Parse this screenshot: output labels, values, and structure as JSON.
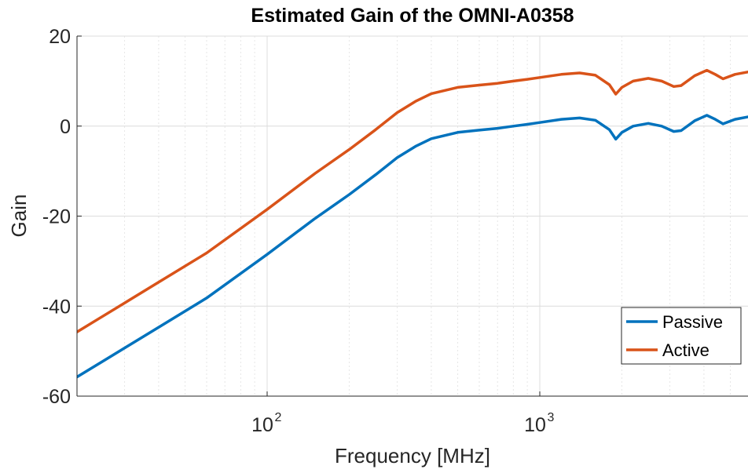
{
  "chart_data": {
    "type": "line",
    "title": "Estimated Gain of the OMNI-A0358",
    "xlabel": "Frequency [MHz]",
    "ylabel": "Gain",
    "xscale": "log",
    "xlim": [
      20,
      6000
    ],
    "ylim": [
      -60,
      20
    ],
    "grid": true,
    "minor_grid": true,
    "legend_location": "bottom-right",
    "y_ticks": [
      "-60",
      "-40",
      "-20",
      "0",
      "20"
    ],
    "x_ticks": [
      {
        "value": 100,
        "base": "10",
        "exp": "2"
      },
      {
        "value": 1000,
        "base": "10",
        "exp": "3"
      }
    ],
    "series": [
      {
        "name": "Passive",
        "color": "#0072BD",
        "points": [
          [
            20,
            -55.8
          ],
          [
            30,
            -49.3
          ],
          [
            40,
            -44.7
          ],
          [
            60,
            -38.2
          ],
          [
            100,
            -28.5
          ],
          [
            150,
            -20.5
          ],
          [
            200,
            -15.2
          ],
          [
            250,
            -10.8
          ],
          [
            300,
            -7.0
          ],
          [
            350,
            -4.5
          ],
          [
            400,
            -2.8
          ],
          [
            500,
            -1.4
          ],
          [
            600,
            -0.9
          ],
          [
            700,
            -0.5
          ],
          [
            800,
            0.0
          ],
          [
            900,
            0.4
          ],
          [
            1000,
            0.8
          ],
          [
            1200,
            1.5
          ],
          [
            1400,
            1.8
          ],
          [
            1600,
            1.3
          ],
          [
            1800,
            -0.8
          ],
          [
            1900,
            -2.9
          ],
          [
            2000,
            -1.4
          ],
          [
            2200,
            0.0
          ],
          [
            2500,
            0.6
          ],
          [
            2800,
            0.0
          ],
          [
            3100,
            -1.2
          ],
          [
            3300,
            -1.0
          ],
          [
            3700,
            1.2
          ],
          [
            4100,
            2.4
          ],
          [
            4400,
            1.5
          ],
          [
            4700,
            0.5
          ],
          [
            5200,
            1.5
          ],
          [
            6000,
            2.2
          ]
        ]
      },
      {
        "name": "Active",
        "color": "#D95319",
        "points": [
          [
            20,
            -45.8
          ],
          [
            30,
            -39.3
          ],
          [
            40,
            -34.7
          ],
          [
            60,
            -28.2
          ],
          [
            100,
            -18.5
          ],
          [
            150,
            -10.5
          ],
          [
            200,
            -5.2
          ],
          [
            250,
            -0.8
          ],
          [
            300,
            3.0
          ],
          [
            350,
            5.5
          ],
          [
            400,
            7.2
          ],
          [
            500,
            8.6
          ],
          [
            600,
            9.1
          ],
          [
            700,
            9.5
          ],
          [
            800,
            10.0
          ],
          [
            900,
            10.4
          ],
          [
            1000,
            10.8
          ],
          [
            1200,
            11.5
          ],
          [
            1400,
            11.8
          ],
          [
            1600,
            11.3
          ],
          [
            1800,
            9.2
          ],
          [
            1900,
            7.1
          ],
          [
            2000,
            8.6
          ],
          [
            2200,
            10.0
          ],
          [
            2500,
            10.6
          ],
          [
            2800,
            10.0
          ],
          [
            3100,
            8.8
          ],
          [
            3300,
            9.0
          ],
          [
            3700,
            11.2
          ],
          [
            4100,
            12.4
          ],
          [
            4400,
            11.5
          ],
          [
            4700,
            10.5
          ],
          [
            5200,
            11.5
          ],
          [
            6000,
            12.2
          ]
        ]
      }
    ]
  }
}
